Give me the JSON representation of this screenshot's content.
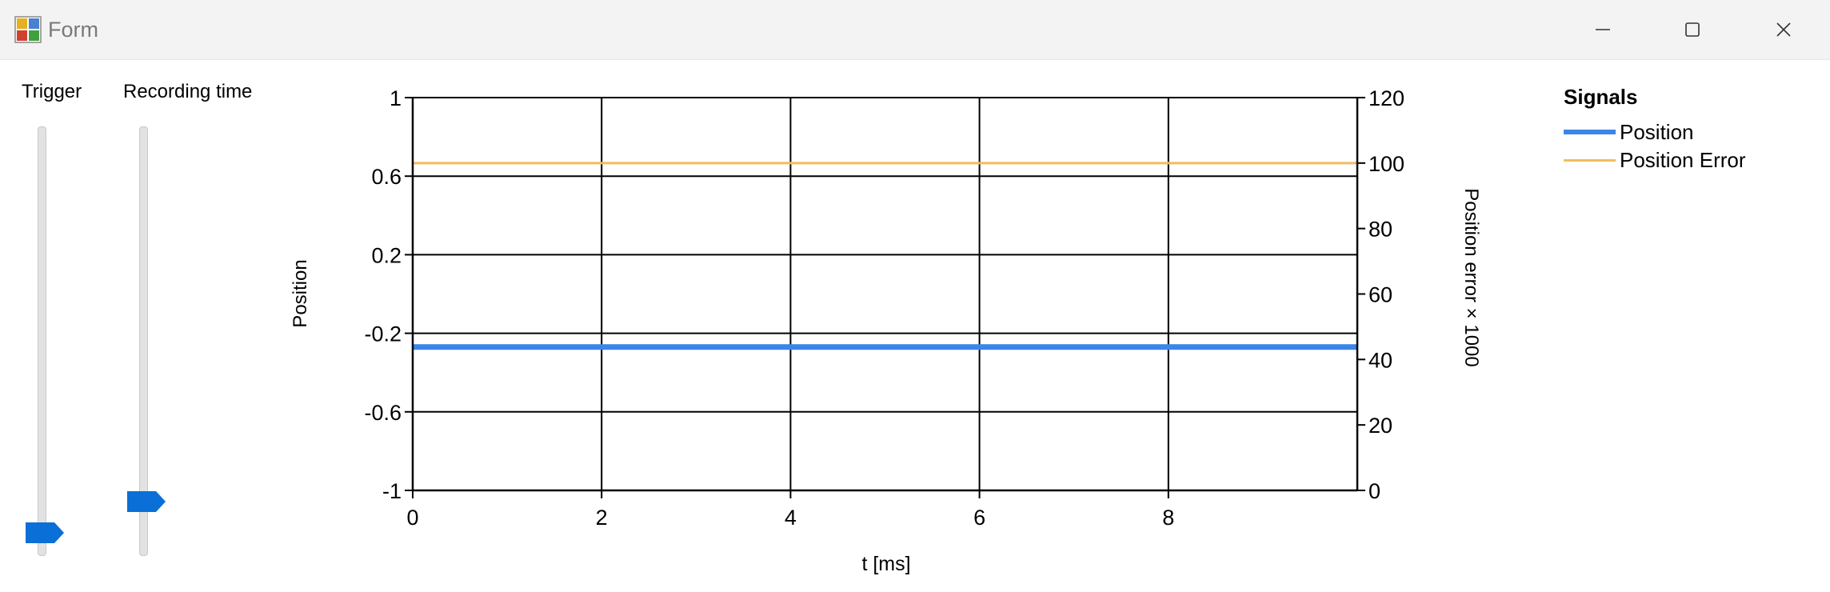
{
  "window": {
    "title": "Form",
    "icon": "app-form-icon",
    "controls": [
      "minimize-icon",
      "maximize-icon",
      "close-icon"
    ]
  },
  "sliders": [
    {
      "label": "Trigger",
      "value_fraction": 0.0
    },
    {
      "label": "Recording time",
      "value_fraction": 0.08
    }
  ],
  "chart_data": {
    "type": "line",
    "title": "",
    "xlabel": "t [ms]",
    "ylabel": "Position",
    "y2label": "Position error × 1000",
    "xlim": [
      0,
      10
    ],
    "ylim": [
      -1,
      1
    ],
    "y2lim": [
      0,
      120
    ],
    "x_ticks": [
      "0",
      "2",
      "4",
      "6",
      "8"
    ],
    "y_ticks": [
      "1",
      "0.6",
      "0.2",
      "-0.2",
      "-0.6",
      "-1"
    ],
    "y2_ticks": [
      "120",
      "100",
      "80",
      "60",
      "40",
      "20",
      "0"
    ],
    "grid": true,
    "legend": {
      "title": "Signals",
      "placement": "right"
    },
    "series": [
      {
        "name": "Position",
        "axis": "left",
        "color": "#3a86e8",
        "x": [
          0,
          10
        ],
        "y": [
          -0.27,
          -0.27
        ]
      },
      {
        "name": "Position Error",
        "axis": "right",
        "color": "#f0bd5c",
        "x": [
          0,
          10
        ],
        "y": [
          100,
          100
        ]
      }
    ]
  }
}
